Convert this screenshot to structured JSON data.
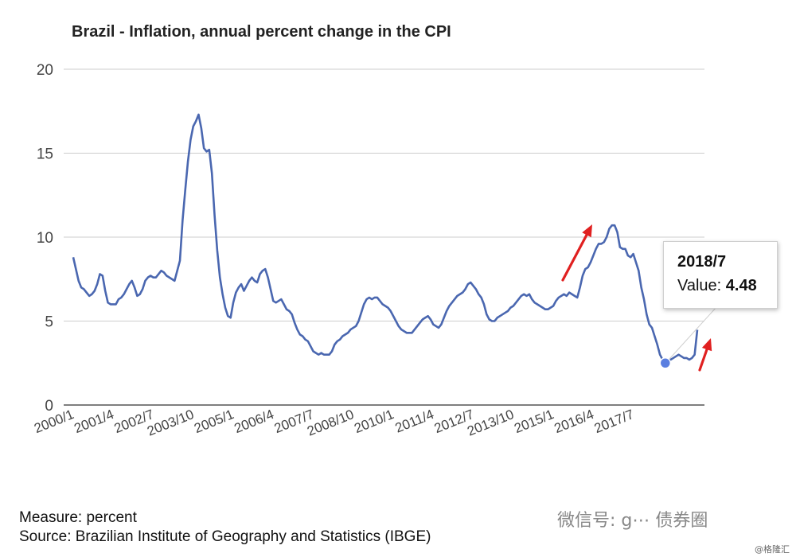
{
  "chart_data": {
    "type": "line",
    "title": "Brazil - Inflation, annual percent change in the CPI",
    "xlabel": "",
    "ylabel": "",
    "ylim": [
      0,
      20
    ],
    "yticks": [
      "0",
      "5",
      "10",
      "15",
      "20"
    ],
    "xticks": [
      "2000/1",
      "2001/4",
      "2002/7",
      "2003/10",
      "2005/1",
      "2006/4",
      "2007/7",
      "2008/10",
      "2010/1",
      "2011/4",
      "2012/7",
      "2013/10",
      "2015/1",
      "2016/4",
      "2017/7"
    ],
    "grid": true,
    "legend": "none",
    "color": "#4a67b0",
    "series": [
      {
        "x_start": "2000/1",
        "x_end": "2018/7",
        "frequency": "monthly",
        "values": [
          8.8,
          8.1,
          7.4,
          7.0,
          6.9,
          6.7,
          6.5,
          6.6,
          6.8,
          7.2,
          7.8,
          7.7,
          6.8,
          6.1,
          6.0,
          6.0,
          6.0,
          6.3,
          6.4,
          6.6,
          6.9,
          7.2,
          7.4,
          7.0,
          6.5,
          6.6,
          6.9,
          7.4,
          7.6,
          7.7,
          7.6,
          7.6,
          7.8,
          8.0,
          7.9,
          7.7,
          7.6,
          7.5,
          7.4,
          8.0,
          8.6,
          11.0,
          12.8,
          14.5,
          15.8,
          16.6,
          16.9,
          17.3,
          16.5,
          15.3,
          15.1,
          15.2,
          13.8,
          11.3,
          9.2,
          7.6,
          6.6,
          5.8,
          5.3,
          5.2,
          6.1,
          6.7,
          7.0,
          7.2,
          6.8,
          7.1,
          7.4,
          7.6,
          7.4,
          7.3,
          7.8,
          8.0,
          8.1,
          7.6,
          6.9,
          6.2,
          6.1,
          6.2,
          6.3,
          6.0,
          5.7,
          5.6,
          5.4,
          4.9,
          4.5,
          4.2,
          4.1,
          3.9,
          3.8,
          3.5,
          3.2,
          3.1,
          3.0,
          3.1,
          3.0,
          3.0,
          3.0,
          3.2,
          3.6,
          3.8,
          3.9,
          4.1,
          4.2,
          4.3,
          4.5,
          4.6,
          4.7,
          5.0,
          5.5,
          6.0,
          6.3,
          6.4,
          6.3,
          6.4,
          6.4,
          6.2,
          6.0,
          5.9,
          5.8,
          5.6,
          5.3,
          5.0,
          4.7,
          4.5,
          4.4,
          4.3,
          4.3,
          4.3,
          4.5,
          4.7,
          4.9,
          5.1,
          5.2,
          5.3,
          5.1,
          4.8,
          4.7,
          4.6,
          4.8,
          5.2,
          5.6,
          5.9,
          6.1,
          6.3,
          6.5,
          6.6,
          6.7,
          6.9,
          7.2,
          7.3,
          7.1,
          6.9,
          6.6,
          6.4,
          6.0,
          5.4,
          5.1,
          5.0,
          5.0,
          5.2,
          5.3,
          5.4,
          5.5,
          5.6,
          5.8,
          5.9,
          6.1,
          6.3,
          6.5,
          6.6,
          6.5,
          6.6,
          6.3,
          6.1,
          6.0,
          5.9,
          5.8,
          5.7,
          5.7,
          5.8,
          5.9,
          6.2,
          6.4,
          6.5,
          6.6,
          6.5,
          6.7,
          6.6,
          6.5,
          6.4,
          7.0,
          7.7,
          8.1,
          8.2,
          8.5,
          8.9,
          9.3,
          9.6,
          9.6,
          9.7,
          10.0,
          10.5,
          10.7,
          10.7,
          10.3,
          9.4,
          9.3,
          9.3,
          8.9,
          8.8,
          9.0,
          8.5,
          8.0,
          7.0,
          6.3,
          5.4,
          4.8,
          4.6,
          4.1,
          3.6,
          3.0,
          2.7,
          2.5,
          2.6,
          2.7,
          2.8,
          2.9,
          3.0,
          2.9,
          2.8,
          2.8,
          2.7,
          2.8,
          3.0,
          4.48
        ]
      }
    ],
    "highlight": {
      "index": 222
    }
  },
  "tooltip": {
    "title": "2018/7",
    "label": "Value:",
    "value": "4.48"
  },
  "footer": {
    "measure": "Measure: percent",
    "source": "Source: Brazilian Institute of Geography and Statistics (IBGE)"
  },
  "watermark": {
    "wechat": "微信号: g⋯ 债券圈",
    "corner": "@格隆汇"
  },
  "annotations": {
    "color": "#e02020",
    "count": 2
  }
}
